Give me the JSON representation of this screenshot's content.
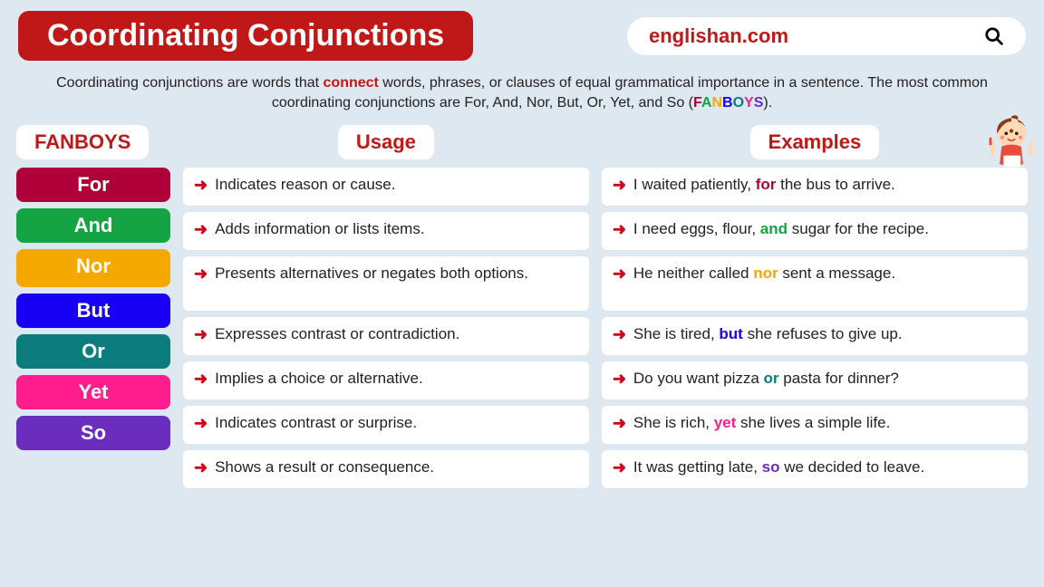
{
  "title": "Coordinating Conjunctions",
  "site": "englishan.com",
  "desc_parts": {
    "p1": "Coordinating conjunctions are words that ",
    "connect": "connect",
    "p2": " words, phrases, or clauses of equal grammatical importance in a sentence. The most common coordinating conjunctions are For, And, Nor, But, Or, Yet, and So (",
    "F": "F",
    "A": "A",
    "N": "N",
    "B": "B",
    "O": "O",
    "Y": "Y",
    "S": "S",
    "p3": ")."
  },
  "headers": {
    "fanboys": "FANBOYS",
    "usage": "Usage",
    "examples": "Examples"
  },
  "colors": {
    "for": "#b0003a",
    "and": "#14a443",
    "nor": "#f5a800",
    "but": "#1800f5",
    "or": "#0b7d7d",
    "yet": "#ff1d8e",
    "so": "#6b2dbd",
    "connect": "#c01818"
  },
  "rows": [
    {
      "word": "For",
      "usage": "Indicates reason or cause.",
      "ex_pre": "I waited patiently, ",
      "ex_kw": "for",
      "ex_post": " the bus to arrive.",
      "kw_color": "#b0003a"
    },
    {
      "word": "And",
      "usage": "Adds information or lists items.",
      "ex_pre": "I need eggs, flour, ",
      "ex_kw": "and",
      "ex_post": " sugar for the recipe.",
      "kw_color": "#14a443"
    },
    {
      "word": "Nor",
      "usage": "Presents alternatives or negates both options.",
      "ex_pre": "He neither called ",
      "ex_kw": "nor",
      "ex_post": " sent a message.",
      "kw_color": "#f5a800",
      "tall": true
    },
    {
      "word": "But",
      "usage": "Expresses contrast or contradiction.",
      "ex_pre": "She is tired, ",
      "ex_kw": "but",
      "ex_post": " she refuses to give up.",
      "kw_color": "#1800f5"
    },
    {
      "word": "Or",
      "usage": "Implies a choice or alternative.",
      "ex_pre": "Do you want pizza ",
      "ex_kw": "or",
      "ex_post": " pasta for dinner?",
      "kw_color": "#0b7d7d"
    },
    {
      "word": "Yet",
      "usage": "Indicates contrast or surprise.",
      "ex_pre": "She is rich, ",
      "ex_kw": "yet",
      "ex_post": " she lives a simple life.",
      "kw_color": "#ff1d8e"
    },
    {
      "word": "So",
      "usage": "Shows a result or consequence.",
      "ex_pre": "It was getting late, ",
      "ex_kw": "so",
      "ex_post": " we decided to leave.",
      "kw_color": "#6b2dbd"
    }
  ]
}
